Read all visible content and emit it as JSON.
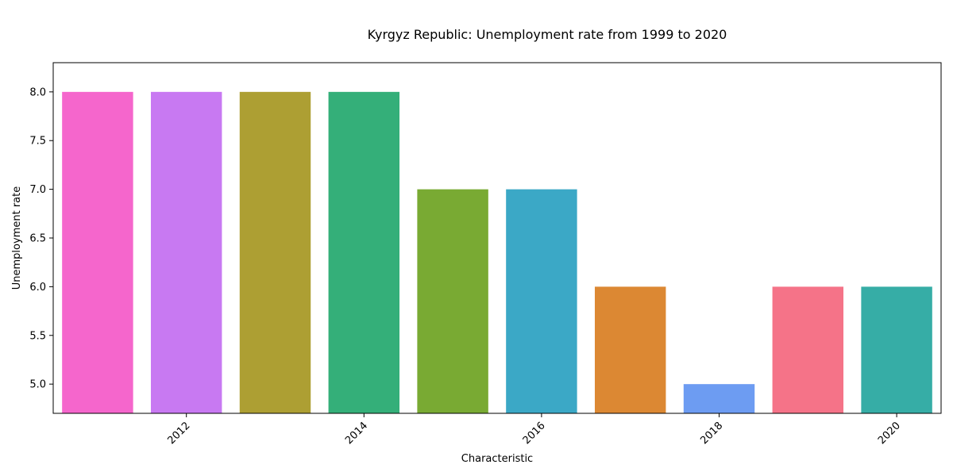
{
  "chart_data": {
    "type": "bar",
    "title": "Kyrgyz Republic: Unemployment rate from 1999 to 2020",
    "xlabel": "Characteristic",
    "ylabel": "Unemployment rate",
    "categories": [
      2011,
      2012,
      2013,
      2014,
      2015,
      2016,
      2017,
      2018,
      2019,
      2020
    ],
    "values": [
      8,
      8,
      8,
      8,
      7,
      7,
      6,
      5,
      6,
      6
    ],
    "colors": [
      "#f566cc",
      "#c879f2",
      "#ad9f33",
      "#34af79",
      "#79aa33",
      "#3ba8c6",
      "#dc8833",
      "#6d9cf2",
      "#f57388",
      "#36ada6"
    ],
    "xticks": [
      "2012",
      "2014",
      "2016",
      "2018",
      "2020"
    ],
    "yticks": [
      "5.0",
      "5.5",
      "6.0",
      "6.5",
      "7.0",
      "7.5",
      "8.0"
    ],
    "ylim": [
      4.7,
      8.3
    ],
    "grid": false,
    "legend": "none"
  }
}
